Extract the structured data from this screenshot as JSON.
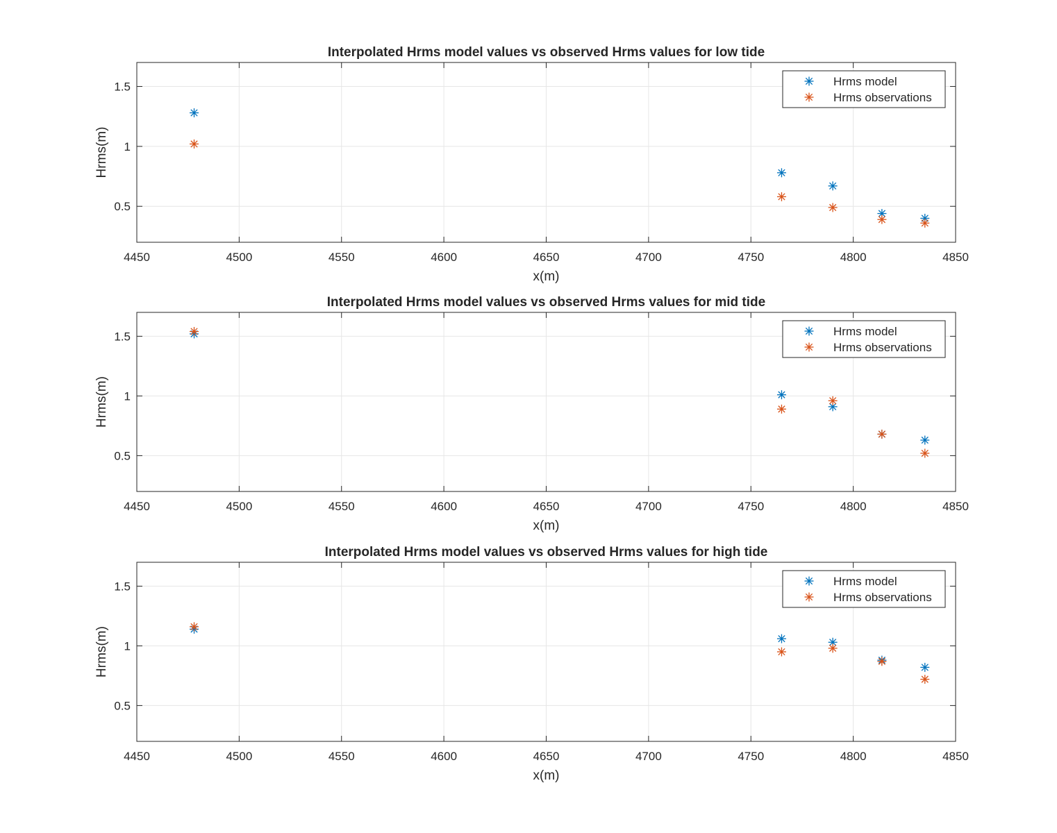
{
  "colors": {
    "model": "#0072BD",
    "observations": "#D95319",
    "grid": "#e6e6e6",
    "axis": "#262626"
  },
  "chart_data": [
    {
      "type": "scatter",
      "title": "Interpolated Hrms model values vs observed Hrms values for low tide",
      "xlabel": "x(m)",
      "ylabel": "Hrms(m)",
      "xlim": [
        4450,
        4850
      ],
      "ylim": [
        0.2,
        1.7
      ],
      "xticks": [
        4450,
        4500,
        4550,
        4600,
        4650,
        4700,
        4750,
        4800,
        4850
      ],
      "yticks": [
        0.5,
        1,
        1.5
      ],
      "xtick_labels": [
        "4450",
        "4500",
        "4550",
        "4600",
        "4650",
        "4700",
        "4750",
        "4800",
        "4850"
      ],
      "ytick_labels": [
        "0.5",
        "1",
        "1.5"
      ],
      "grid": true,
      "legend_position": "top-right",
      "marker": "*",
      "x": [
        4478,
        4765,
        4790,
        4814,
        4835
      ],
      "series": [
        {
          "name": "Hrms model",
          "values": [
            1.28,
            0.78,
            0.67,
            0.44,
            0.4
          ]
        },
        {
          "name": "Hrms observations",
          "values": [
            1.02,
            0.58,
            0.49,
            0.39,
            0.36
          ]
        }
      ]
    },
    {
      "type": "scatter",
      "title": "Interpolated Hrms model values vs observed Hrms values for mid tide",
      "xlabel": "x(m)",
      "ylabel": "Hrms(m)",
      "xlim": [
        4450,
        4850
      ],
      "ylim": [
        0.2,
        1.7
      ],
      "xticks": [
        4450,
        4500,
        4550,
        4600,
        4650,
        4700,
        4750,
        4800,
        4850
      ],
      "yticks": [
        0.5,
        1,
        1.5
      ],
      "xtick_labels": [
        "4450",
        "4500",
        "4550",
        "4600",
        "4650",
        "4700",
        "4750",
        "4800",
        "4850"
      ],
      "ytick_labels": [
        "0.5",
        "1",
        "1.5"
      ],
      "grid": true,
      "legend_position": "top-right",
      "marker": "*",
      "x": [
        4478,
        4765,
        4790,
        4814,
        4835
      ],
      "series": [
        {
          "name": "Hrms model",
          "values": [
            1.52,
            1.01,
            0.91,
            0.68,
            0.63
          ]
        },
        {
          "name": "Hrms observations",
          "values": [
            1.54,
            0.89,
            0.96,
            0.68,
            0.52
          ]
        }
      ]
    },
    {
      "type": "scatter",
      "title": "Interpolated Hrms model values vs observed Hrms values for high tide",
      "xlabel": "x(m)",
      "ylabel": "Hrms(m)",
      "xlim": [
        4450,
        4850
      ],
      "ylim": [
        0.2,
        1.7
      ],
      "xticks": [
        4450,
        4500,
        4550,
        4600,
        4650,
        4700,
        4750,
        4800,
        4850
      ],
      "yticks": [
        0.5,
        1,
        1.5
      ],
      "xtick_labels": [
        "4450",
        "4500",
        "4550",
        "4600",
        "4650",
        "4700",
        "4750",
        "4800",
        "4850"
      ],
      "ytick_labels": [
        "0.5",
        "1",
        "1.5"
      ],
      "grid": true,
      "legend_position": "top-right",
      "marker": "*",
      "x": [
        4478,
        4765,
        4790,
        4814,
        4835
      ],
      "series": [
        {
          "name": "Hrms model",
          "values": [
            1.14,
            1.06,
            1.03,
            0.88,
            0.82
          ]
        },
        {
          "name": "Hrms observations",
          "values": [
            1.16,
            0.95,
            0.98,
            0.87,
            0.72
          ]
        }
      ]
    }
  ]
}
